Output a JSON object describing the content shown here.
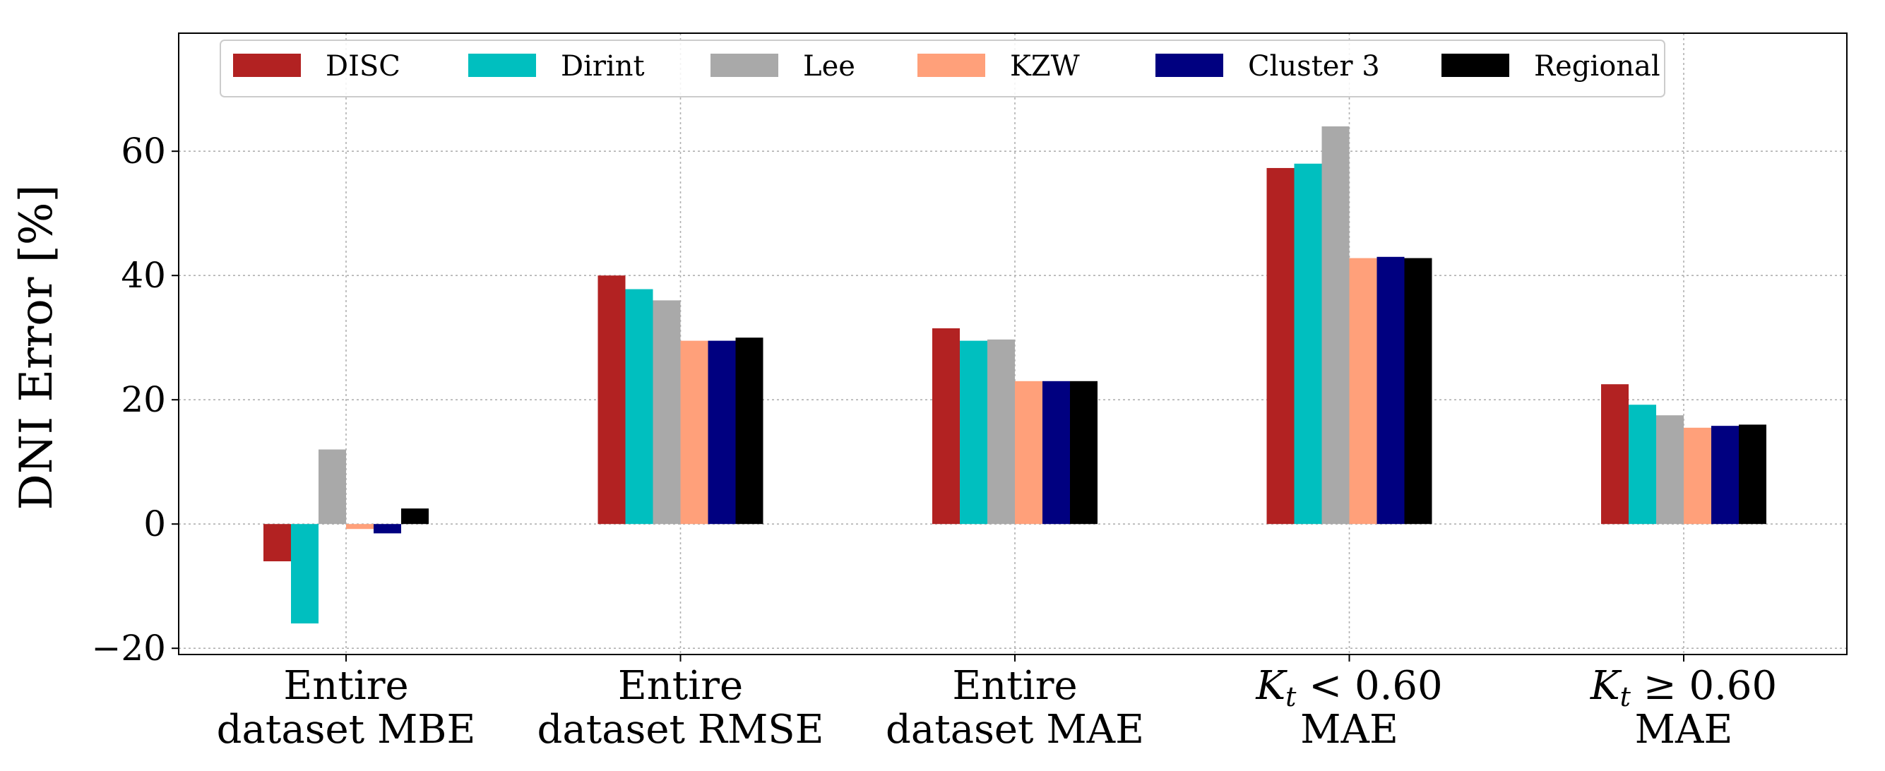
{
  "chart_data": {
    "type": "bar",
    "ylabel": "DNI Error [%]",
    "xlabel": "",
    "ylim": [
      -21,
      79
    ],
    "yticks": [
      -20,
      0,
      20,
      40,
      60
    ],
    "ytick_labels": [
      "−20",
      "0",
      "20",
      "40",
      "60"
    ],
    "grid": true,
    "legend_position": "top",
    "categories": [
      {
        "lines": [
          "Entire",
          "dataset MBE"
        ]
      },
      {
        "lines": [
          "Entire",
          "dataset RMSE"
        ]
      },
      {
        "lines": [
          "Entire",
          "dataset MAE"
        ]
      },
      {
        "lines": [
          "K_t < 0.60",
          "MAE"
        ]
      },
      {
        "lines": [
          "K_t ≥ 0.60",
          "MAE"
        ]
      }
    ],
    "series": [
      {
        "name": "DISC",
        "color": "#b22222",
        "values": [
          -6.0,
          40.0,
          31.5,
          57.3,
          22.5
        ]
      },
      {
        "name": "Dirint",
        "color": "#00bfbf",
        "values": [
          -16.0,
          37.8,
          29.5,
          58.0,
          19.2
        ]
      },
      {
        "name": "Lee",
        "color": "#a9a9a9",
        "values": [
          12.0,
          36.0,
          29.7,
          64.0,
          17.5
        ]
      },
      {
        "name": "KZW",
        "color": "#ffa07a",
        "values": [
          -0.8,
          29.5,
          23.0,
          42.8,
          15.5
        ]
      },
      {
        "name": "Cluster 3",
        "color": "#000080",
        "values": [
          -1.5,
          29.5,
          23.0,
          43.0,
          15.8
        ]
      },
      {
        "name": "Regional",
        "color": "#000000",
        "values": [
          2.5,
          30.0,
          23.0,
          42.8,
          16.0
        ]
      }
    ]
  }
}
